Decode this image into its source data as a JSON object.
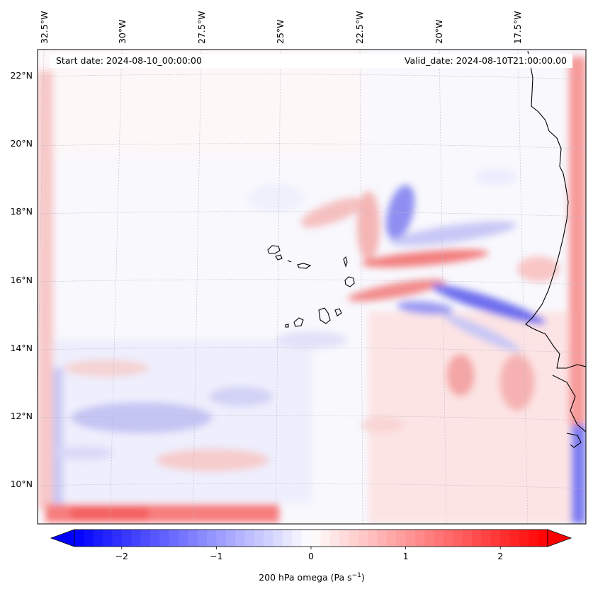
{
  "map": {
    "top_labels": [
      "32.5°W",
      "30°W",
      "27.5°W",
      "25°W",
      "22.5°W",
      "20°W",
      "17.5°W"
    ],
    "left_labels": [
      "22°N",
      "20°N",
      "18°N",
      "16°N",
      "14°N",
      "12°N",
      "10°N"
    ],
    "start_date": "Start date: 2024-08-10_00:00:00",
    "valid_date": "Valid_date: 2024-08-10T21:00:00.00"
  },
  "colorbar": {
    "tick_labels": [
      "−2",
      "−1",
      "0",
      "1",
      "2"
    ],
    "tick_values": [
      -2,
      -1,
      0,
      1,
      2
    ],
    "vmin": -2.5,
    "vmax": 2.5,
    "label_main": "200 hPa omega (Pa s",
    "label_exp": "−1",
    "label_close": ")",
    "low_color": "#0000ff",
    "mid_color": "#ffffff",
    "high_color": "#ff0000"
  }
}
